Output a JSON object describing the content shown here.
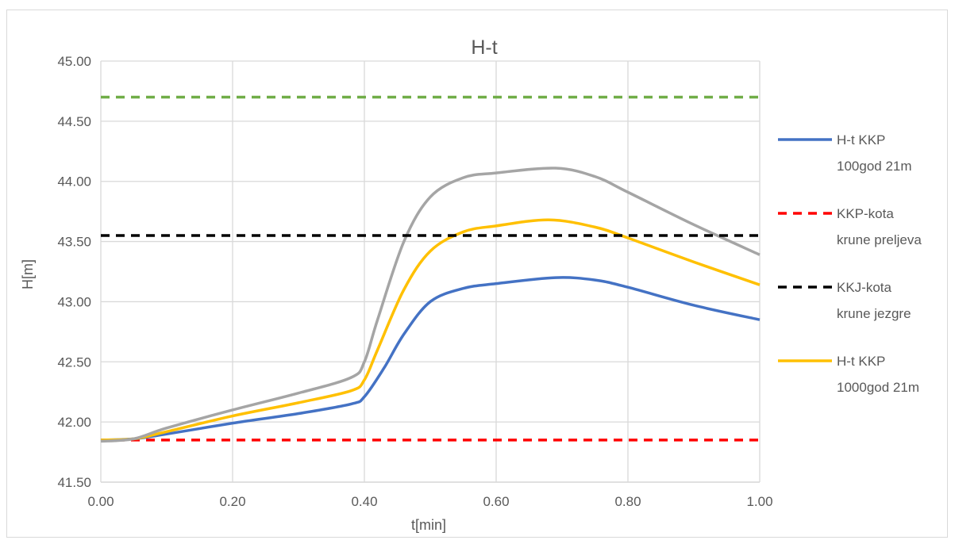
{
  "chart_data": {
    "type": "line",
    "title": "H-t",
    "xlabel": "t[min]",
    "ylabel": "H[m]",
    "xlim": [
      0,
      1
    ],
    "ylim": [
      41.5,
      45.0
    ],
    "x_ticks": [
      "0.00",
      "0.20",
      "0.40",
      "0.60",
      "0.80",
      "1.00"
    ],
    "y_ticks": [
      "41.50",
      "42.00",
      "42.50",
      "43.00",
      "43.50",
      "44.00",
      "44.50",
      "45.00"
    ],
    "grid": true,
    "legend_position": "right",
    "series": [
      {
        "name": "H-t KKP 100god 21m",
        "legend_lines": [
          "H-t KKP",
          "100god 21m"
        ],
        "color": "#4472c4",
        "dashed": false,
        "in_legend": true,
        "points": [
          [
            0,
            41.85
          ],
          [
            0.05,
            41.86
          ],
          [
            0.1,
            41.9
          ],
          [
            0.2,
            41.99
          ],
          [
            0.3,
            42.07
          ],
          [
            0.38,
            42.15
          ],
          [
            0.4,
            42.21
          ],
          [
            0.43,
            42.45
          ],
          [
            0.46,
            42.73
          ],
          [
            0.5,
            43.0
          ],
          [
            0.55,
            43.11
          ],
          [
            0.6,
            43.15
          ],
          [
            0.69,
            43.2
          ],
          [
            0.75,
            43.18
          ],
          [
            0.8,
            43.12
          ],
          [
            0.9,
            42.97
          ],
          [
            1.0,
            42.85
          ]
        ]
      },
      {
        "name": "KKP-kota krune preljeva",
        "legend_lines": [
          "KKP-kota",
          "krune preljeva"
        ],
        "color": "#ff0000",
        "dashed": true,
        "in_legend": true,
        "points": [
          [
            0,
            41.85
          ],
          [
            1,
            41.85
          ]
        ]
      },
      {
        "name": "KKJ-kota krune jezgre",
        "legend_lines": [
          "KKJ-kota",
          "krune jezgre"
        ],
        "color": "#000000",
        "dashed": true,
        "in_legend": true,
        "points": [
          [
            0,
            43.55
          ],
          [
            1,
            43.55
          ]
        ]
      },
      {
        "name": "H-t KKP 1000god 21m",
        "legend_lines": [
          "H-t KKP",
          "1000god 21m"
        ],
        "color": "#ffc000",
        "dashed": false,
        "in_legend": true,
        "points": [
          [
            0,
            41.85
          ],
          [
            0.05,
            41.86
          ],
          [
            0.1,
            41.92
          ],
          [
            0.2,
            42.05
          ],
          [
            0.3,
            42.16
          ],
          [
            0.38,
            42.26
          ],
          [
            0.4,
            42.35
          ],
          [
            0.42,
            42.6
          ],
          [
            0.46,
            43.1
          ],
          [
            0.5,
            43.42
          ],
          [
            0.55,
            43.58
          ],
          [
            0.6,
            43.63
          ],
          [
            0.68,
            43.68
          ],
          [
            0.75,
            43.62
          ],
          [
            0.8,
            43.53
          ],
          [
            0.9,
            43.33
          ],
          [
            1.0,
            43.14
          ]
        ]
      },
      {
        "name": "",
        "legend_lines": [],
        "color": "#a5a5a5",
        "dashed": false,
        "in_legend": false,
        "points": [
          [
            0,
            41.84
          ],
          [
            0.05,
            41.86
          ],
          [
            0.1,
            41.95
          ],
          [
            0.2,
            42.1
          ],
          [
            0.3,
            42.24
          ],
          [
            0.38,
            42.37
          ],
          [
            0.4,
            42.5
          ],
          [
            0.42,
            42.85
          ],
          [
            0.46,
            43.5
          ],
          [
            0.5,
            43.87
          ],
          [
            0.55,
            44.03
          ],
          [
            0.6,
            44.07
          ],
          [
            0.69,
            44.11
          ],
          [
            0.75,
            44.04
          ],
          [
            0.8,
            43.91
          ],
          [
            0.9,
            43.64
          ],
          [
            1.0,
            43.39
          ]
        ]
      },
      {
        "name": "",
        "legend_lines": [],
        "color": "#70ad47",
        "dashed": true,
        "in_legend": false,
        "points": [
          [
            0,
            44.7
          ],
          [
            1,
            44.7
          ]
        ]
      }
    ]
  }
}
